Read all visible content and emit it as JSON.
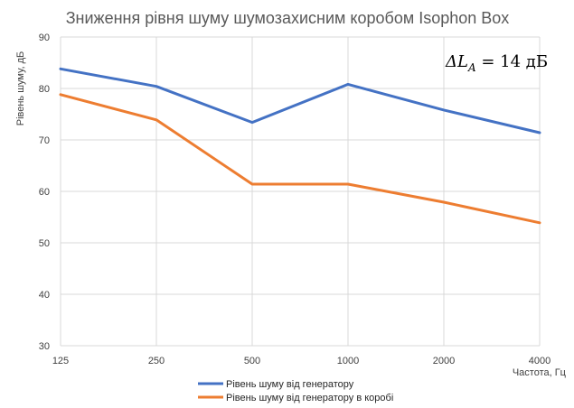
{
  "chart_data": {
    "type": "line",
    "title": "Зниження рівня шуму шумозахисним коробом Isophon Box",
    "xlabel": "Частота, Гц",
    "ylabel": "Рівень шуму, дБ",
    "categories": [
      "125",
      "250",
      "500",
      "1000",
      "2000",
      "4000"
    ],
    "ylim": [
      30,
      90
    ],
    "yticks": [
      "30",
      "40",
      "50",
      "60",
      "70",
      "80",
      "90"
    ],
    "grid": true,
    "legend_position": "bottom",
    "annotation": {
      "delta": "ΔL",
      "subscript": "A",
      "rest": " = 14 дБ"
    },
    "series": [
      {
        "name": "Рівень шуму від генератору",
        "color": "#4472C4",
        "values": [
          83.8,
          80.4,
          73.4,
          80.8,
          75.8,
          71.4
        ]
      },
      {
        "name": "Рівень шуму від генератору в коробі",
        "color": "#ED7D31",
        "values": [
          78.8,
          73.9,
          61.4,
          61.4,
          57.9,
          53.9
        ]
      }
    ]
  }
}
